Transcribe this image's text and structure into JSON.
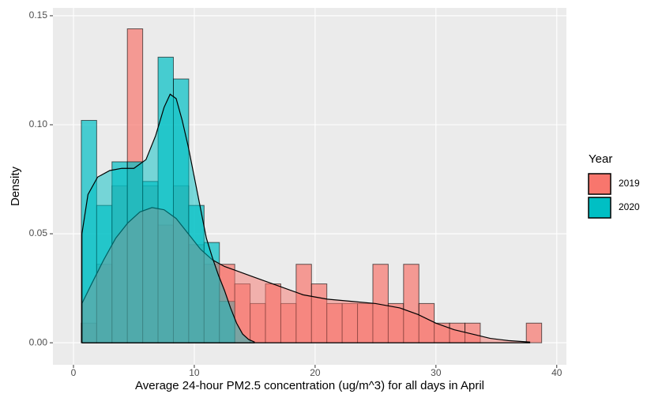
{
  "chart_data": {
    "type": "histogram",
    "x_label": "Average 24-hour PM2.5 concentration (ug/m^3) for all days in April",
    "y_label": "Density",
    "legend_title": "Year",
    "xlim": [
      -1.7,
      40.8
    ],
    "ylim": [
      -0.0101,
      0.1536
    ],
    "xticks": [
      0,
      10,
      20,
      30,
      40
    ],
    "yticks": [
      {
        "value": 0,
        "label": "0.00"
      },
      {
        "value": 0.05,
        "label": "0.05"
      },
      {
        "value": 0.1,
        "label": "0.10"
      },
      {
        "value": 0.15,
        "label": "0.15"
      }
    ],
    "grid": true,
    "bins": [
      0.65,
      1.92,
      3.19,
      4.46,
      5.73,
      7.0,
      8.27,
      9.54,
      10.81,
      12.08,
      13.35,
      14.62,
      15.89,
      17.16,
      18.43,
      19.7,
      20.97,
      22.24,
      23.51,
      24.78,
      26.05,
      27.32,
      28.59,
      29.86,
      31.13,
      32.4,
      33.67,
      34.94,
      36.21,
      37.48,
      38.75
    ],
    "series": [
      {
        "name": "2019",
        "color": "#f8766d",
        "values": [
          0.009,
          0.036,
          0.072,
          0.144,
          0.072,
          0.054,
          0.072,
          0.045,
          0.036,
          0.036,
          0.027,
          0.018,
          0.027,
          0.018,
          0.036,
          0.027,
          0.018,
          0.018,
          0.018,
          0.036,
          0.018,
          0.036,
          0.018,
          0.009,
          0.009,
          0.009,
          0.0,
          0.0,
          0.0,
          0.009
        ],
        "density_x": [
          0.7,
          1.5,
          2.5,
          3.5,
          4.5,
          5.5,
          6.5,
          7.5,
          8.5,
          9.5,
          10.5,
          11.5,
          12.5,
          13.5,
          15,
          17,
          19,
          21,
          23,
          25,
          27,
          28.5,
          30,
          31.5,
          33,
          34.5,
          36,
          37.8
        ],
        "density": [
          0.018,
          0.027,
          0.038,
          0.048,
          0.055,
          0.06,
          0.062,
          0.061,
          0.057,
          0.05,
          0.043,
          0.038,
          0.035,
          0.033,
          0.03,
          0.026,
          0.022,
          0.02,
          0.019,
          0.018,
          0.016,
          0.013,
          0.009,
          0.006,
          0.004,
          0.002,
          0.001,
          0.0003
        ]
      },
      {
        "name": "2020",
        "color": "#00bfc4",
        "values": [
          0.102,
          0.063,
          0.083,
          0.083,
          0.074,
          0.131,
          0.121,
          0.063,
          0.046,
          0.019,
          0,
          0,
          0,
          0,
          0,
          0,
          0,
          0,
          0,
          0,
          0,
          0,
          0,
          0,
          0,
          0,
          0,
          0,
          0,
          0
        ],
        "density_x": [
          0.7,
          1.2,
          2,
          3,
          4,
          5,
          6,
          6.8,
          7.5,
          8,
          8.5,
          9,
          9.5,
          10,
          10.5,
          11,
          11.5,
          12,
          12.5,
          13,
          13.5,
          14,
          14.5,
          15
        ],
        "density": [
          0.05,
          0.068,
          0.076,
          0.079,
          0.08,
          0.08,
          0.084,
          0.095,
          0.108,
          0.114,
          0.112,
          0.102,
          0.09,
          0.076,
          0.062,
          0.048,
          0.039,
          0.031,
          0.024,
          0.016,
          0.009,
          0.004,
          0.0015,
          0.0003
        ]
      }
    ],
    "legend_position": "right"
  }
}
